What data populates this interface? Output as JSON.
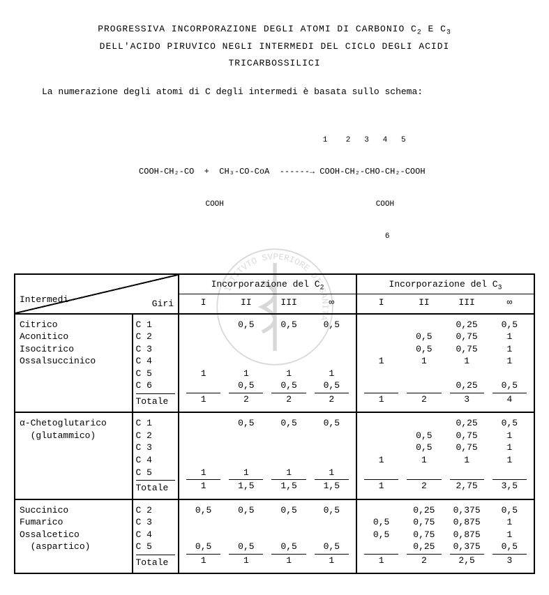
{
  "title_line1": "PROGRESSIVA INCORPORAZIONE DEGLI ATOMI DI CARBONIO C",
  "title_c2": "2",
  "title_and": " E C",
  "title_c3": "3",
  "title_line2": "DELL'ACIDO PIRUVICO NEGLI INTERMEDI DEL CICLO DEGLI  ACIDI",
  "title_line3": "TRICARBOSSILICI",
  "subtitle": "La numerazione degli atomi di C degli intermedi è basata sullo schema:",
  "formula_numbers": "                                       1    2   3   4   5",
  "formula_main": "   COOH-CH₂-CO  +  CH₃-CO-CoA  ------→ COOH-CH₂-CHO-CH₂-COOH",
  "formula_sub1": "           COOH                                 COOH",
  "formula_sub2": "                                                 6",
  "header": {
    "intermedi": "Intermedi",
    "giri": "Giri",
    "inc_c2": "Incorporazione del C",
    "inc_c2_sub": "2",
    "inc_c3": "Incorporazione del C",
    "inc_c3_sub": "3",
    "cols": [
      "I",
      "II",
      "III",
      "∞"
    ]
  },
  "groups": [
    {
      "names": [
        "Citrico",
        "Aconitico",
        "Isocitrico",
        "Ossalsuccinico"
      ],
      "carbons": [
        "C 1",
        "C 2",
        "C 3",
        "C 4",
        "C 5",
        "C 6"
      ],
      "c2": [
        [
          "",
          "0,5",
          "0,5",
          "0,5"
        ],
        [
          "",
          "",
          "",
          ""
        ],
        [
          "",
          "",
          "",
          ""
        ],
        [
          "",
          "",
          "",
          ""
        ],
        [
          "1",
          "1",
          "1",
          "1"
        ],
        [
          "",
          "0,5",
          "0,5",
          "0,5"
        ]
      ],
      "c2_total": [
        "1",
        "2",
        "2",
        "2"
      ],
      "c3": [
        [
          "",
          "",
          "0,25",
          "0,5"
        ],
        [
          "",
          "0,5",
          "0,75",
          "1"
        ],
        [
          "",
          "0,5",
          "0,75",
          "1"
        ],
        [
          "1",
          "1",
          "1",
          "1"
        ],
        [
          "",
          "",
          "",
          ""
        ],
        [
          "",
          "",
          "0,25",
          "0,5"
        ]
      ],
      "c3_total": [
        "1",
        "2",
        "3",
        "4"
      ]
    },
    {
      "names": [
        "α-Chetoglutarico",
        "  (glutammico)"
      ],
      "carbons": [
        "C 1",
        "C 2",
        "C 3",
        "C 4",
        "C 5"
      ],
      "c2": [
        [
          "",
          "0,5",
          "0,5",
          "0,5"
        ],
        [
          "",
          "",
          "",
          ""
        ],
        [
          "",
          "",
          "",
          ""
        ],
        [
          "",
          "",
          "",
          ""
        ],
        [
          "1",
          "1",
          "1",
          "1"
        ]
      ],
      "c2_total": [
        "1",
        "1,5",
        "1,5",
        "1,5"
      ],
      "c3": [
        [
          "",
          "",
          "0,25",
          "0,5"
        ],
        [
          "",
          "0,5",
          "0,75",
          "1"
        ],
        [
          "",
          "0,5",
          "0,75",
          "1"
        ],
        [
          "1",
          "1",
          "1",
          "1"
        ],
        [
          "",
          "",
          "",
          ""
        ]
      ],
      "c3_total": [
        "1",
        "2",
        "2,75",
        "3,5"
      ]
    },
    {
      "names": [
        "Succinico",
        "Fumarico",
        "Ossalcetico",
        "  (aspartico)"
      ],
      "carbons": [
        "C 2",
        "C 3",
        "C 4",
        "C 5"
      ],
      "c2": [
        [
          "0,5",
          "0,5",
          "0,5",
          "0,5"
        ],
        [
          "",
          "",
          "",
          ""
        ],
        [
          "",
          "",
          "",
          ""
        ],
        [
          "0,5",
          "0,5",
          "0,5",
          "0,5"
        ]
      ],
      "c2_total": [
        "1",
        "1",
        "1",
        "1"
      ],
      "c3": [
        [
          "",
          "0,25",
          "0,375",
          "0,5"
        ],
        [
          "0,5",
          "0,75",
          "0,875",
          "1"
        ],
        [
          "0,5",
          "0,75",
          "0,875",
          "1"
        ],
        [
          "",
          "0,25",
          "0,375",
          "0,5"
        ]
      ],
      "c3_total": [
        "1",
        "2",
        "2,5",
        "3"
      ]
    }
  ],
  "totale": "Totale"
}
